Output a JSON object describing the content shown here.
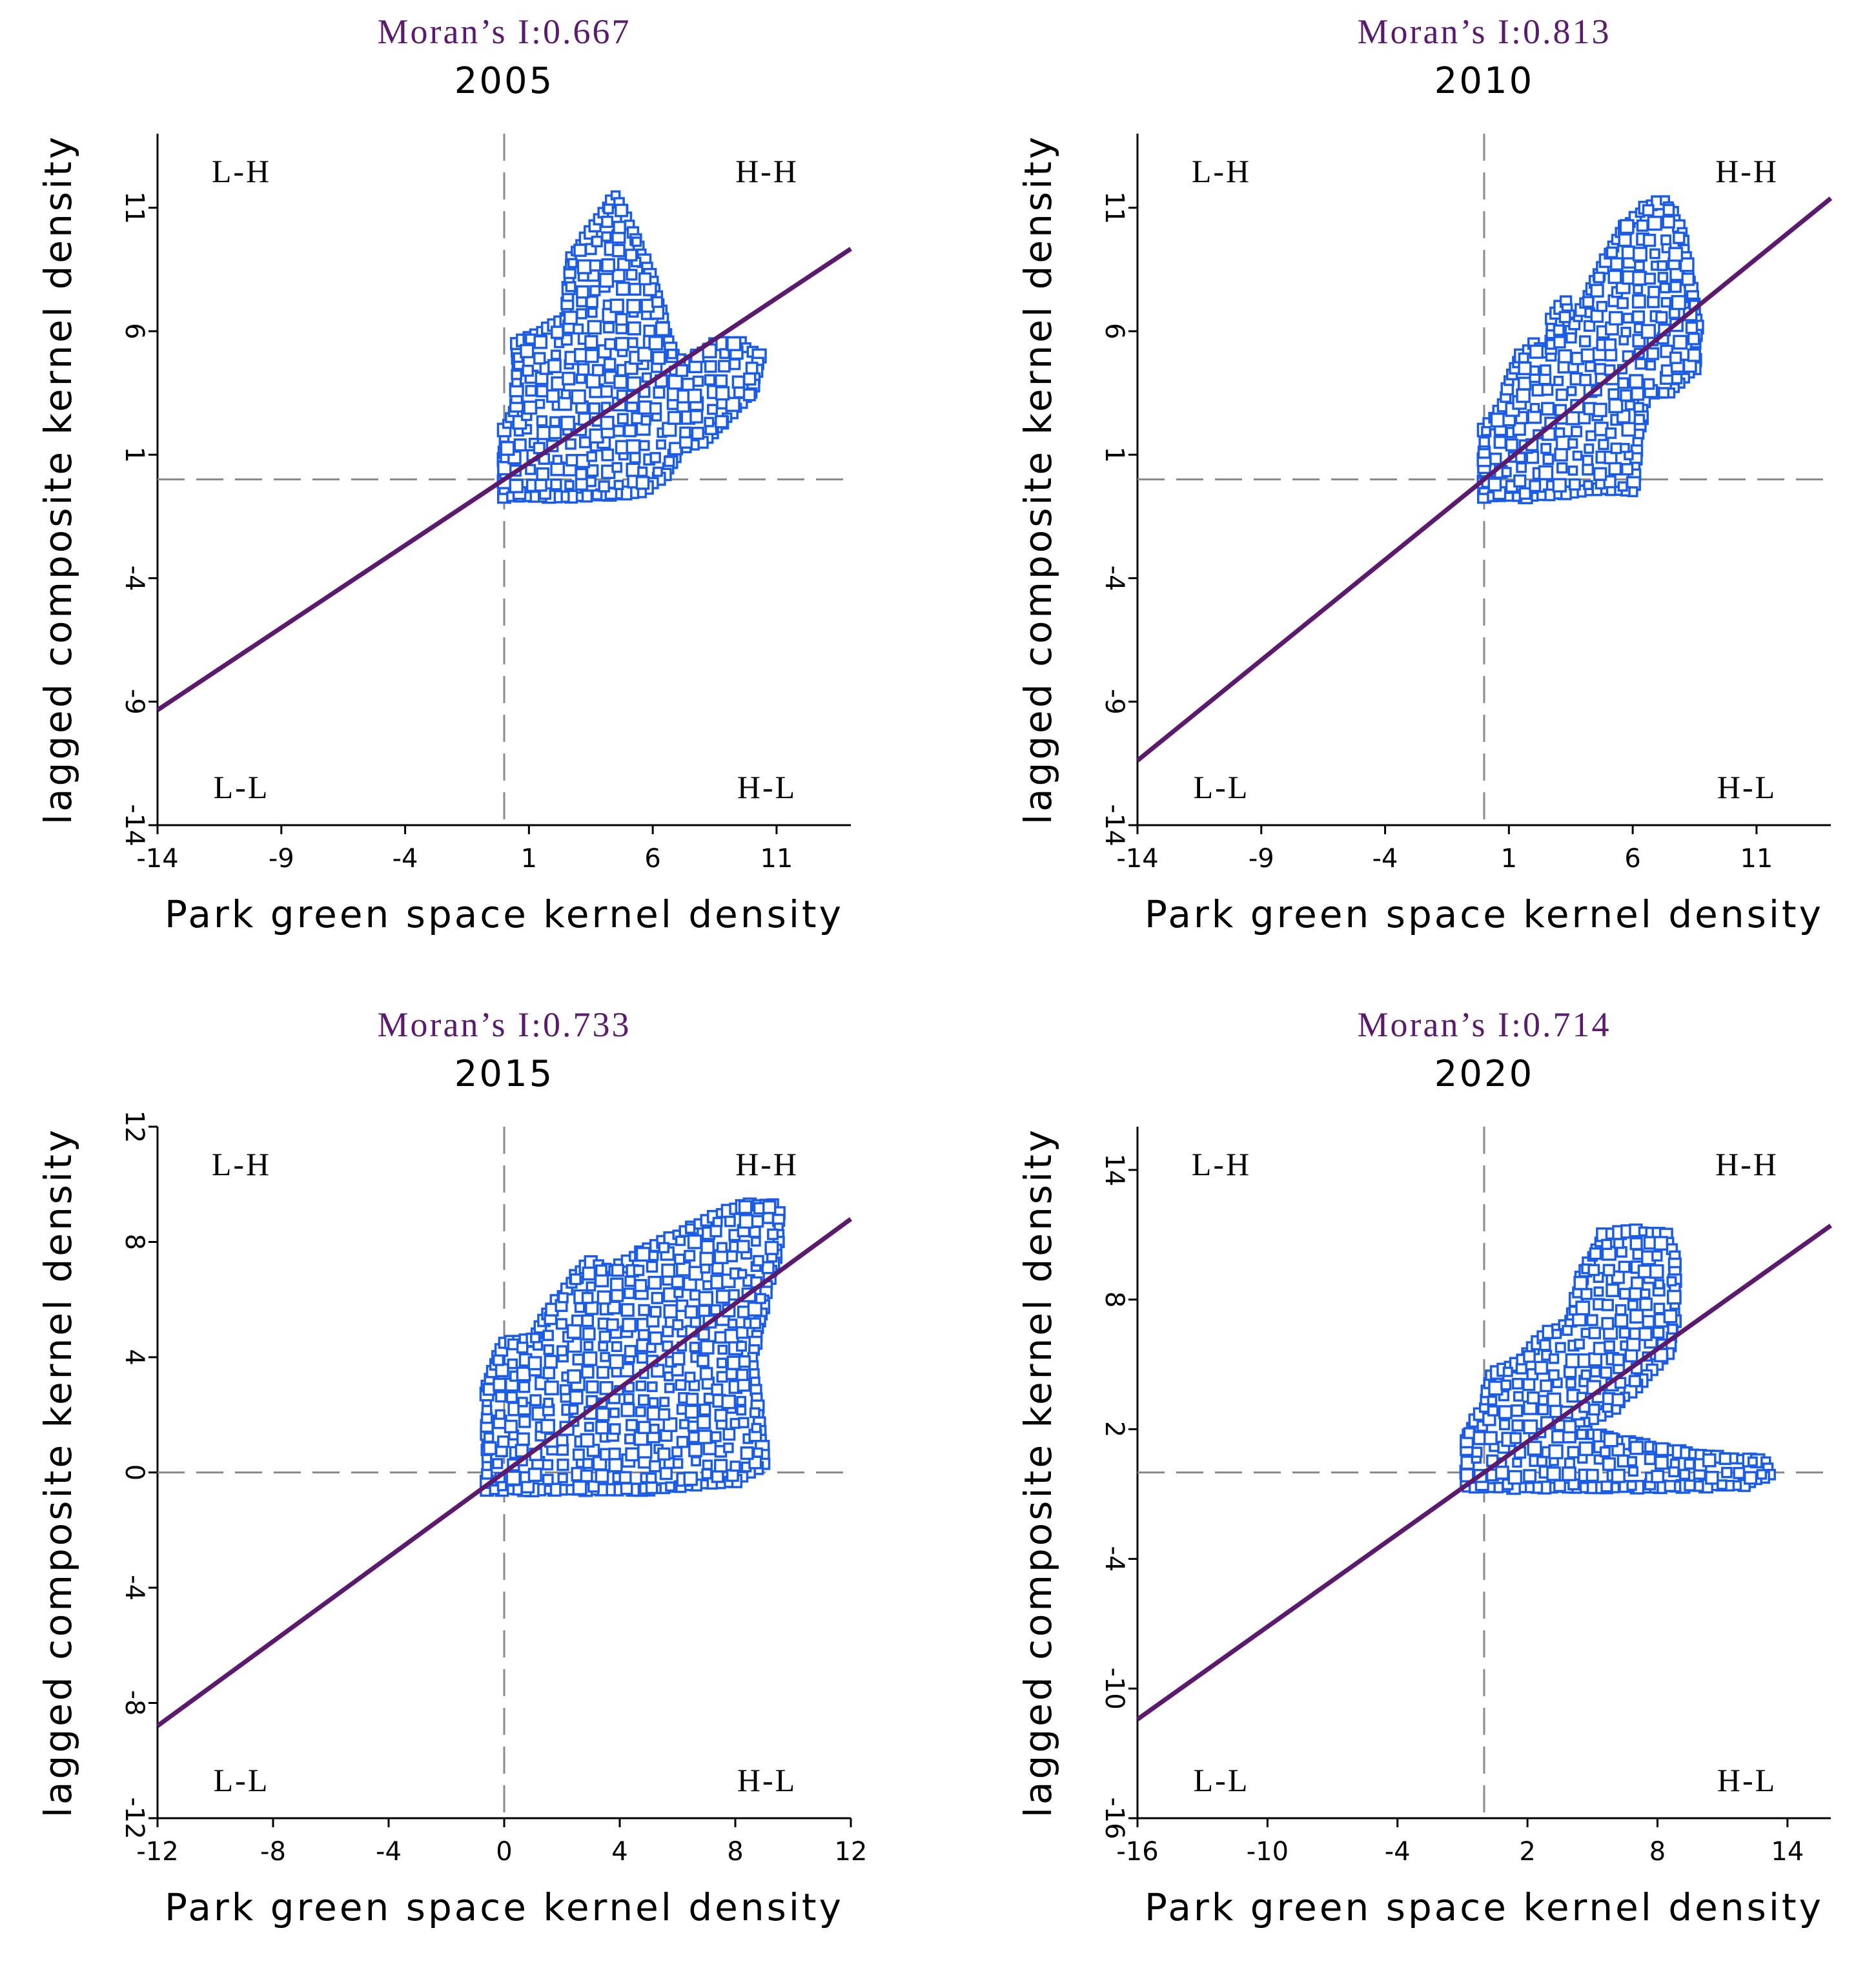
{
  "figure": {
    "colors": {
      "points": "#1a5ce6",
      "regression": "#5b1a6e",
      "moran_text": "#5b1a6e",
      "guide": "#8a8a8a"
    }
  },
  "chart_data": [
    {
      "type": "scatter",
      "moran": "Moran’s I:0.667",
      "title": "2005",
      "xlabel": "Park green space kernel density",
      "ylabel": "lagged composite kernel density",
      "xlim": [
        -14,
        14
      ],
      "ylim": [
        -14,
        14
      ],
      "xticks": [
        "-14",
        "-9",
        "-4",
        "1",
        "6",
        "11"
      ],
      "yticks": [
        "-14",
        "-9",
        "-4",
        "1",
        "6",
        "11"
      ],
      "quadrants": {
        "tl": "L-H",
        "tr": "H-H",
        "bl": "L-L",
        "br": "H-L"
      },
      "slope": 0.667,
      "cloud": [
        [
          0,
          -0.7
        ],
        [
          0,
          2
        ],
        [
          0.5,
          3
        ],
        [
          0.5,
          5.5
        ],
        [
          1.5,
          6
        ],
        [
          2.5,
          6.5
        ],
        [
          2.7,
          9
        ],
        [
          3.5,
          10
        ],
        [
          4,
          10.8
        ],
        [
          4.5,
          11.5
        ],
        [
          5.2,
          10
        ],
        [
          6,
          8
        ],
        [
          6.8,
          5
        ],
        [
          7.5,
          4.8
        ],
        [
          8.5,
          5.5
        ],
        [
          9.5,
          5.5
        ],
        [
          10.3,
          5
        ],
        [
          10,
          3.5
        ],
        [
          9,
          2.5
        ],
        [
          8,
          1.5
        ],
        [
          7,
          1.2
        ],
        [
          6.5,
          0.2
        ],
        [
          5.5,
          -0.5
        ],
        [
          3,
          -0.7
        ]
      ]
    },
    {
      "type": "scatter",
      "moran": "Moran’s I:0.813",
      "title": "2010",
      "xlabel": "Park green space kernel density",
      "ylabel": "lagged composite kernel density",
      "xlim": [
        -14,
        14
      ],
      "ylim": [
        -14,
        14
      ],
      "xticks": [
        "-14",
        "-9",
        "-4",
        "1",
        "6",
        "11"
      ],
      "yticks": [
        "-14",
        "-9",
        "-4",
        "1",
        "6",
        "11"
      ],
      "quadrants": {
        "tl": "L-H",
        "tr": "H-H",
        "bl": "L-L",
        "br": "H-L"
      },
      "slope": 0.813,
      "cloud": [
        [
          0,
          -0.7
        ],
        [
          0,
          2
        ],
        [
          0.8,
          3
        ],
        [
          1,
          4
        ],
        [
          1.5,
          5
        ],
        [
          2,
          5.5
        ],
        [
          2.7,
          5
        ],
        [
          2.7,
          6.5
        ],
        [
          3.3,
          7.2
        ],
        [
          3.5,
          6
        ],
        [
          4.5,
          8
        ],
        [
          5.5,
          10
        ],
        [
          6.5,
          11
        ],
        [
          7.3,
          11.3
        ],
        [
          8,
          10
        ],
        [
          8.3,
          8
        ],
        [
          8.6,
          6.5
        ],
        [
          8.5,
          4.5
        ],
        [
          7.5,
          3.5
        ],
        [
          6.5,
          3.5
        ],
        [
          6.2,
          1.5
        ],
        [
          6,
          -0.5
        ],
        [
          4.5,
          -0.4
        ],
        [
          2,
          -0.7
        ]
      ]
    },
    {
      "type": "scatter",
      "moran": "Moran’s I:0.733",
      "title": "2015",
      "xlabel": "Park green space kernel density",
      "ylabel": "lagged composite kernel density",
      "xlim": [
        -12,
        12
      ],
      "ylim": [
        -12,
        12
      ],
      "xticks": [
        "-12",
        "-8",
        "-4",
        "0",
        "4",
        "8",
        "12"
      ],
      "yticks": [
        "-12",
        "-8",
        "-4",
        "0",
        "4",
        "8",
        "12"
      ],
      "quadrants": {
        "tl": "L-H",
        "tr": "H-H",
        "bl": "L-L",
        "br": "H-L"
      },
      "slope": 0.733,
      "cloud": [
        [
          -0.6,
          -0.6
        ],
        [
          -0.6,
          3
        ],
        [
          0,
          4.5
        ],
        [
          1,
          4.6
        ],
        [
          1.5,
          5.5
        ],
        [
          2.5,
          6.8
        ],
        [
          3,
          7.3
        ],
        [
          3.8,
          7
        ],
        [
          4.5,
          7.5
        ],
        [
          5.5,
          8
        ],
        [
          6.5,
          8.5
        ],
        [
          7.5,
          9
        ],
        [
          8.5,
          9.3
        ],
        [
          9.3,
          9.3
        ],
        [
          9.5,
          9
        ],
        [
          9.5,
          8
        ],
        [
          9,
          6
        ],
        [
          8.6,
          4
        ],
        [
          8.8,
          2
        ],
        [
          9,
          0.3
        ],
        [
          8,
          -0.3
        ],
        [
          5,
          -0.6
        ],
        [
          2,
          -0.6
        ]
      ]
    },
    {
      "type": "scatter",
      "moran": "Moran’s I:0.714",
      "title": "2020",
      "xlabel": "Park green space kernel density",
      "ylabel": "lagged composite kernel density",
      "xlim": [
        -16,
        16
      ],
      "ylim": [
        -16,
        16
      ],
      "xticks": [
        "-16",
        "-10",
        "-4",
        "2",
        "8",
        "14"
      ],
      "yticks": [
        "-16",
        "-10",
        "-4",
        "2",
        "8",
        "14"
      ],
      "quadrants": {
        "tl": "L-H",
        "tr": "H-H",
        "bl": "L-L",
        "br": "H-L"
      },
      "slope": 0.714,
      "cloud": [
        [
          -0.8,
          -0.7
        ],
        [
          -0.8,
          1.8
        ],
        [
          0,
          3
        ],
        [
          0.3,
          4.5
        ],
        [
          1.5,
          5
        ],
        [
          2,
          5.5
        ],
        [
          3,
          6.5
        ],
        [
          4,
          7
        ],
        [
          4.5,
          9
        ],
        [
          5.5,
          11
        ],
        [
          7,
          11.2
        ],
        [
          8.4,
          11
        ],
        [
          8.8,
          10
        ],
        [
          8.8,
          7
        ],
        [
          8.5,
          5.5
        ],
        [
          7.5,
          4.5
        ],
        [
          6,
          3
        ],
        [
          4,
          2
        ],
        [
          7,
          1.3
        ],
        [
          10,
          0.8
        ],
        [
          13,
          0.5
        ],
        [
          13.2,
          -0.1
        ],
        [
          12,
          -0.6
        ],
        [
          6,
          -0.7
        ],
        [
          1,
          -0.7
        ]
      ]
    }
  ]
}
